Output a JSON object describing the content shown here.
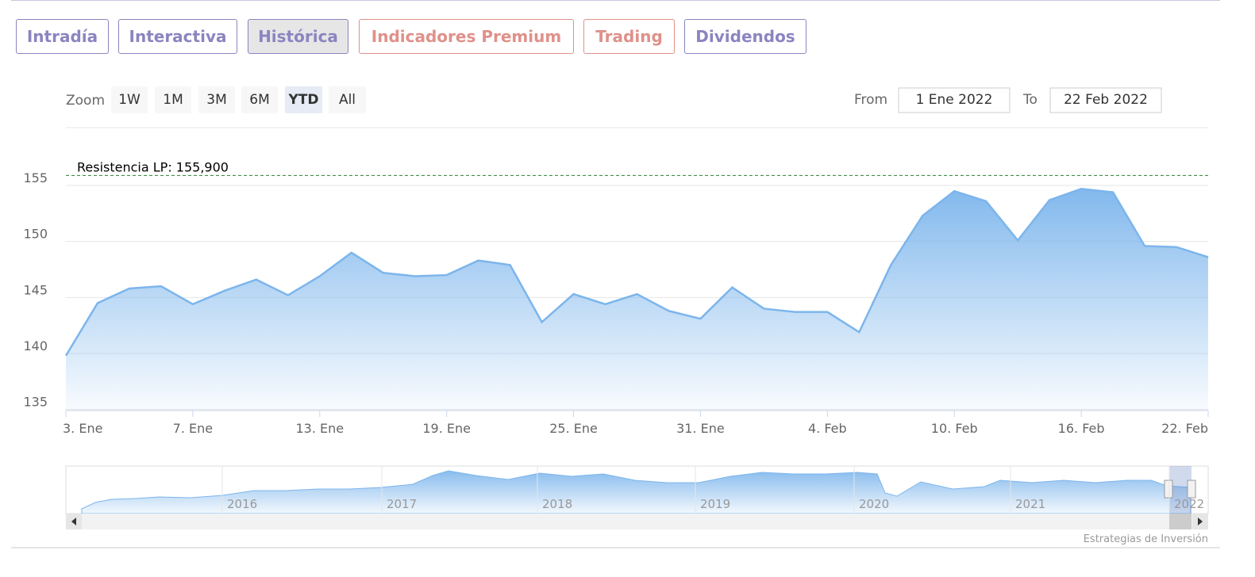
{
  "tabs": [
    "Intradía",
    "Interactiva",
    "Histórica",
    "Indicadores Premium",
    "Trading",
    "Dividendos"
  ],
  "zoom": {
    "label": "Zoom",
    "buttons": [
      "1W",
      "1M",
      "3M",
      "6M",
      "YTD",
      "All"
    ],
    "selected": "YTD"
  },
  "range": {
    "from_label": "From",
    "from": "1 Ene 2022",
    "to_label": "To",
    "to": "22 Feb 2022"
  },
  "chart_data": {
    "type": "area",
    "categories": [
      "3. Ene",
      null,
      null,
      null,
      "7. Ene",
      null,
      null,
      null,
      "13. Ene",
      null,
      null,
      null,
      "19. Ene",
      null,
      null,
      null,
      "25. Ene",
      null,
      null,
      null,
      "31. Ene",
      null,
      null,
      null,
      "4. Feb",
      null,
      null,
      null,
      "10. Feb",
      null,
      null,
      null,
      "16. Feb",
      null,
      null,
      null,
      "22. Feb"
    ],
    "values": [
      139.8,
      144.5,
      145.8,
      146.0,
      144.4,
      145.6,
      146.6,
      145.2,
      146.9,
      149.0,
      147.2,
      146.9,
      147.0,
      148.3,
      147.9,
      142.8,
      145.3,
      144.4,
      145.3,
      143.8,
      143.1,
      145.9,
      144.0,
      143.7,
      143.7,
      141.9,
      147.9,
      152.3,
      154.5,
      153.6,
      150.1,
      153.7,
      154.7,
      154.4,
      149.6,
      149.5,
      148.6
    ],
    "color": "#7cb5ec",
    "ylim": [
      134.9,
      160.1
    ],
    "yticks": [
      135,
      140,
      145,
      150,
      155
    ],
    "grid": true,
    "annotations": [
      {
        "label": "Resistencia LP: 155,900",
        "value": 155.9,
        "color": "#2e7d32"
      }
    ]
  },
  "navigator": {
    "years": [
      "2016",
      "2017",
      "2018",
      "2019",
      "2020",
      "2021",
      "2022"
    ]
  },
  "credit": "Estrategias de Inversión"
}
